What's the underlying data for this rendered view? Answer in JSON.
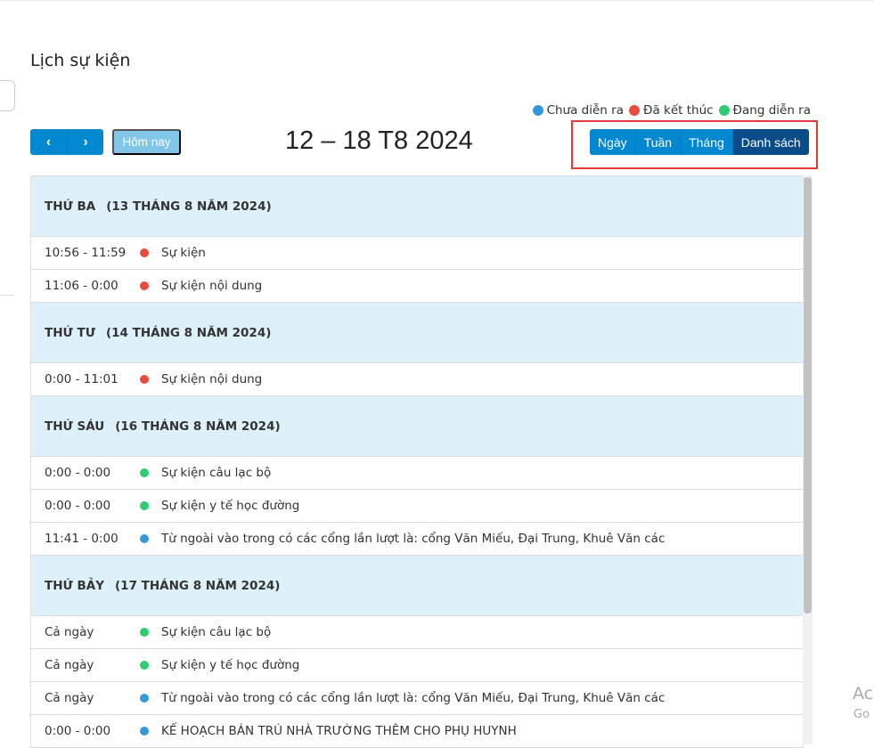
{
  "page_title": "Lịch sự kiện",
  "legend": [
    {
      "label": "Chưa diễn ra",
      "color": "#3498db"
    },
    {
      "label": "Đã kết thúc",
      "color": "#e74c3c"
    },
    {
      "label": "Đang diễn ra",
      "color": "#2ecc71"
    }
  ],
  "toolbar": {
    "prev": "‹",
    "next": "›",
    "today": "Hôm nay",
    "range": "12 – 18 T8 2024",
    "views": [
      {
        "label": "Ngày"
      },
      {
        "label": "Tuần"
      },
      {
        "label": "Tháng"
      },
      {
        "label": "Danh sách",
        "active": true
      }
    ]
  },
  "days": [
    {
      "day": "THỨ BA",
      "date": "(13 THÁNG 8 NĂM 2024)",
      "events": [
        {
          "time": "10:56 - 11:59",
          "title": "Sự kiện",
          "color": "#e74c3c"
        },
        {
          "time": "11:06 - 0:00",
          "title": "Sự kiện nội dung",
          "color": "#e74c3c"
        }
      ]
    },
    {
      "day": "THỨ TƯ",
      "date": "(14 THÁNG 8 NĂM 2024)",
      "events": [
        {
          "time": "0:00 - 11:01",
          "title": "Sự kiện nội dung",
          "color": "#e74c3c"
        }
      ]
    },
    {
      "day": "THỨ SÁU",
      "date": "(16 THÁNG 8 NĂM 2024)",
      "events": [
        {
          "time": "0:00 - 0:00",
          "title": "Sự kiện câu lạc bộ",
          "color": "#2ecc71"
        },
        {
          "time": "0:00 - 0:00",
          "title": "Sự kiện y tế học đường",
          "color": "#2ecc71"
        },
        {
          "time": "11:41 - 0:00",
          "title": "Từ ngoài vào trong có các cổng lần lượt là: cổng Văn Miếu, Đại Trung, Khuê Văn các",
          "color": "#3498db"
        }
      ]
    },
    {
      "day": "THỨ BẢY",
      "date": "(17 THÁNG 8 NĂM 2024)",
      "events": [
        {
          "time": "Cả ngày",
          "title": "Sự kiện câu lạc bộ",
          "color": "#2ecc71"
        },
        {
          "time": "Cả ngày",
          "title": "Sự kiện y tế học đường",
          "color": "#2ecc71"
        },
        {
          "time": "Cả ngày",
          "title": "Từ ngoài vào trong có các cổng lần lượt là: cổng Văn Miếu, Đại Trung, Khuê Văn các",
          "color": "#3498db"
        },
        {
          "time": "0:00 - 0:00",
          "title": "KẾ HOẠCH BÁN TRÚ NHÀ TRƯỜNG THÊM CHO PHỤ HUYNH",
          "color": "#3498db"
        }
      ]
    }
  ],
  "watermark": {
    "line1": "Ac",
    "line2": "Go"
  }
}
